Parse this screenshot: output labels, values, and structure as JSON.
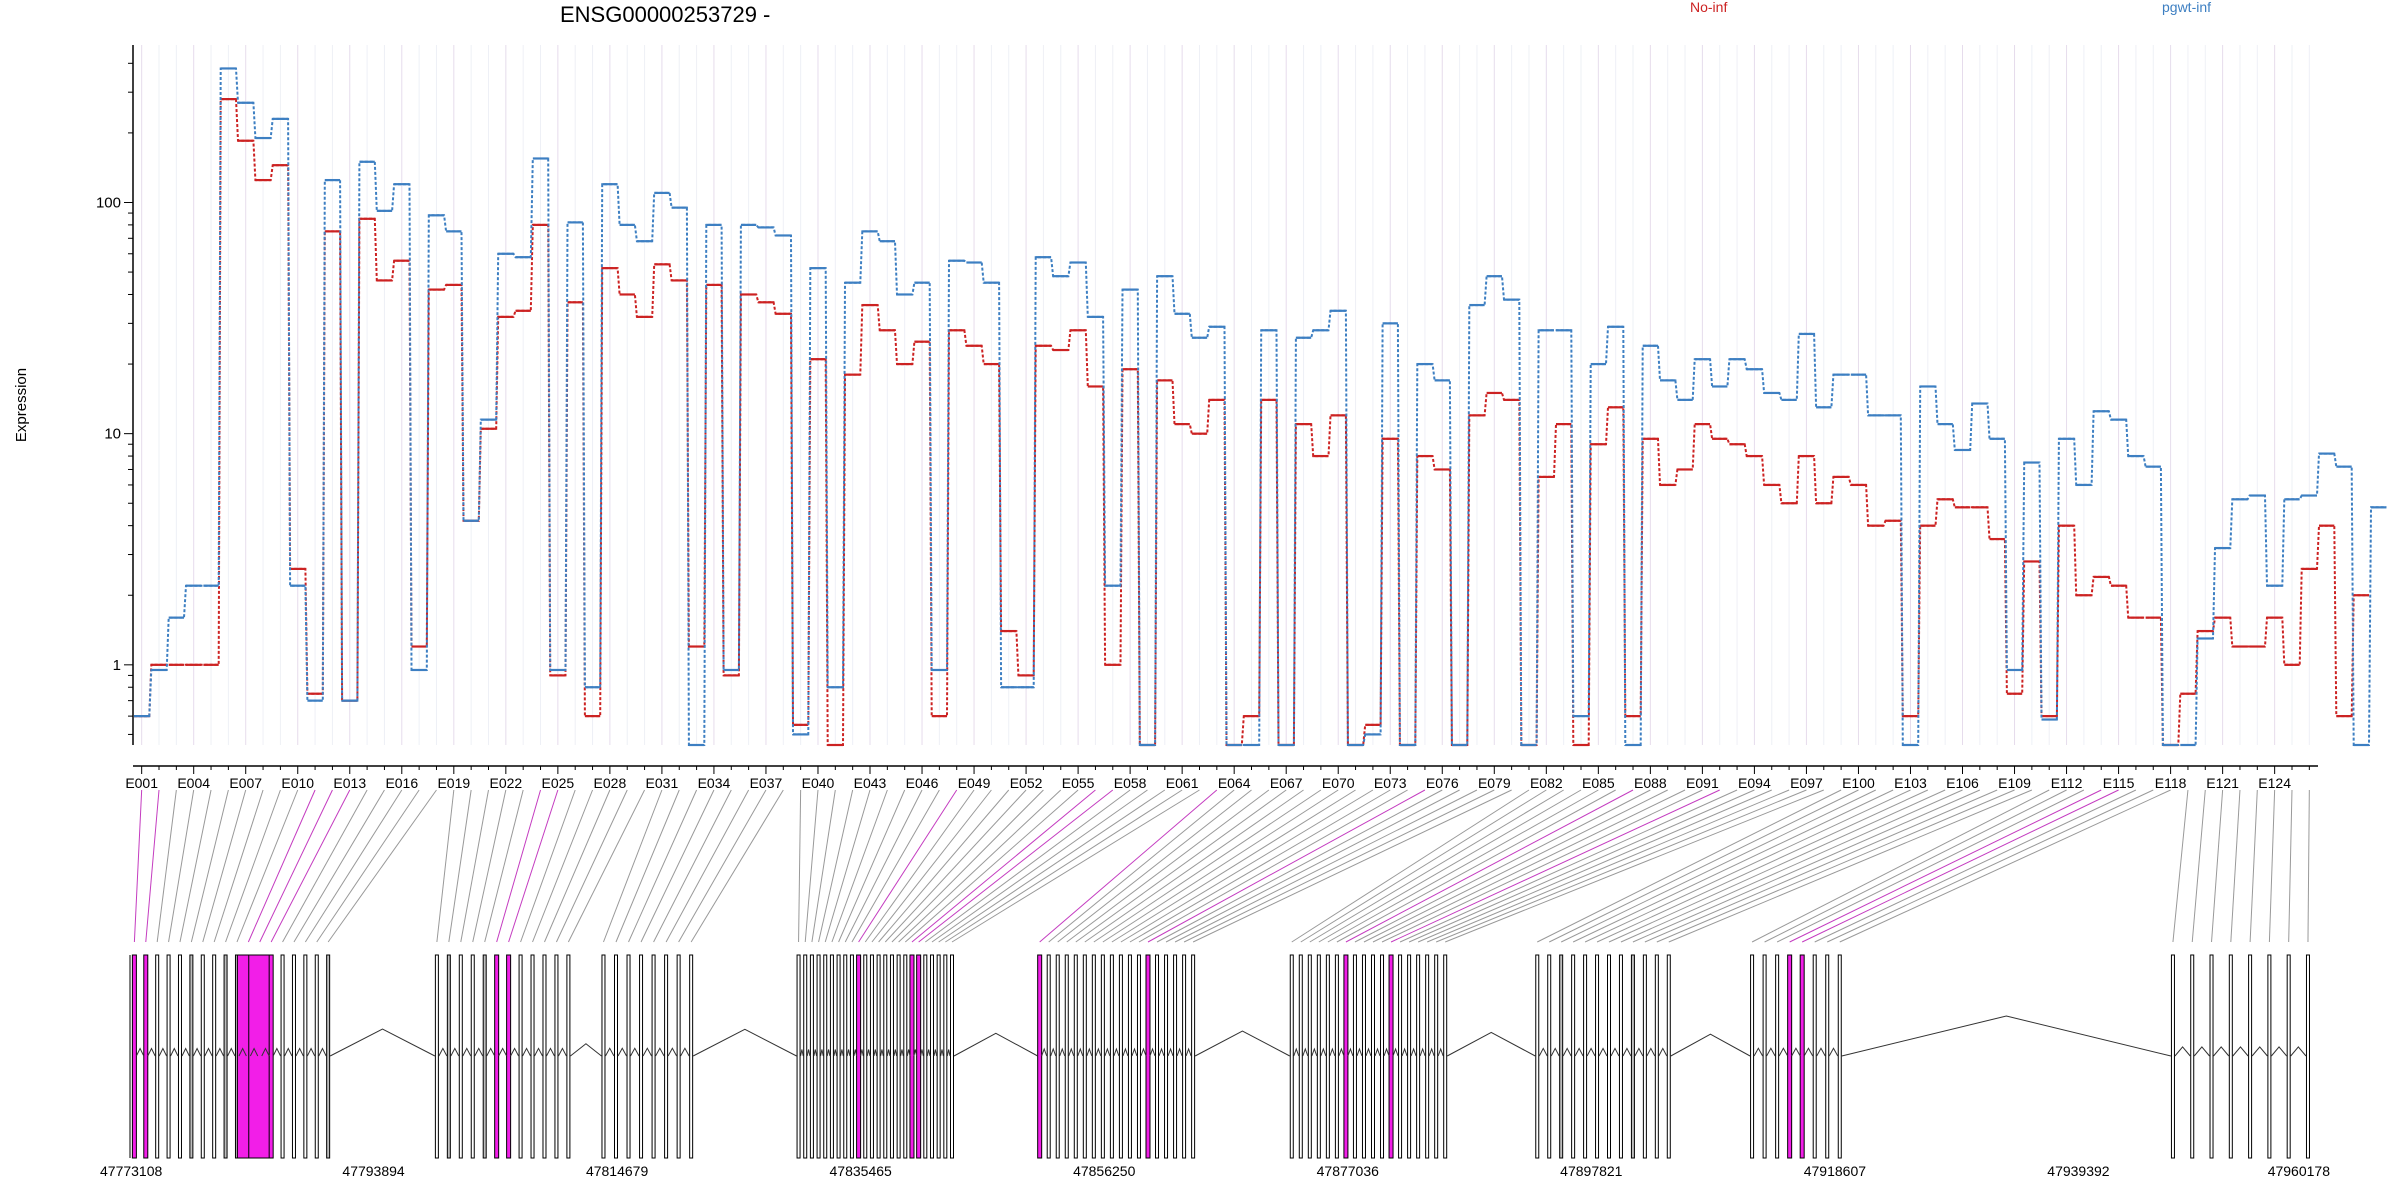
{
  "chart_data": {
    "type": "line",
    "title": "ENSG00000253729 -",
    "ylabel": "Expression",
    "yscale": "log",
    "ylim": [
      0.45,
      480
    ],
    "yticks": [
      "1",
      "10",
      "100"
    ],
    "legend_placement": "top",
    "n_exons": 126,
    "exon_labels": [
      "E001",
      "E004",
      "E007",
      "E010",
      "E013",
      "E016",
      "E019",
      "E022",
      "E025",
      "E028",
      "E031",
      "E034",
      "E037",
      "E040",
      "E043",
      "E046",
      "E049",
      "E052",
      "E055",
      "E058",
      "E061",
      "E064",
      "E067",
      "E070",
      "E073",
      "E076",
      "E079",
      "E082",
      "E085",
      "E088",
      "E091",
      "E094",
      "E097",
      "E100",
      "E103",
      "E106",
      "E109",
      "E112",
      "E115",
      "E118",
      "E121",
      "E124"
    ],
    "genomic_ticks": [
      "47773108",
      "47793894",
      "47814679",
      "47835465",
      "47856250",
      "47877036",
      "47897821",
      "47918607",
      "47939392",
      "47960178"
    ],
    "series": [
      {
        "name": "No-inf",
        "color": "#cc2222",
        "values": [
          0.6,
          1.0,
          1.0,
          1.0,
          1.0,
          280,
          185,
          125,
          145,
          2.6,
          0.75,
          75,
          0.7,
          85,
          46,
          56,
          1.2,
          42,
          44,
          4.2,
          10.5,
          32,
          34,
          80,
          0.9,
          37,
          0.6,
          52,
          40,
          32,
          54,
          46,
          1.2,
          44,
          0.9,
          40,
          37,
          33,
          0.55,
          21,
          0.45,
          18,
          36,
          28,
          20,
          25,
          0.6,
          28,
          24,
          20,
          1.4,
          0.9,
          24,
          23,
          28,
          16,
          1.0,
          19,
          0.45,
          17,
          11,
          10,
          14,
          0.45,
          0.6,
          14,
          0.45,
          11,
          8,
          12,
          0.45,
          0.55,
          9.5,
          0.45,
          8,
          7,
          0.45,
          12,
          15,
          14,
          0.45,
          6.5,
          11,
          0.45,
          9,
          13,
          0.6,
          9.5,
          6,
          7,
          11,
          9.5,
          9,
          8,
          6,
          5,
          8,
          5,
          6.5,
          6,
          4,
          4.2,
          0.6,
          4,
          5.2,
          4.8,
          4.8,
          3.5,
          0.75,
          2.8,
          0.6,
          4,
          2,
          2.4,
          2.2,
          1.6,
          1.6,
          0.45,
          0.75,
          1.4,
          1.6,
          1.2,
          1.2,
          1.6,
          1.0,
          2.6,
          4,
          0.6,
          2
        ]
      },
      {
        "name": "pgwt-inf",
        "color": "#3d7fc2",
        "values": [
          0.6,
          0.95,
          1.6,
          2.2,
          2.2,
          380,
          270,
          190,
          230,
          2.2,
          0.7,
          125,
          0.7,
          150,
          92,
          120,
          0.95,
          88,
          75,
          4.2,
          11.5,
          60,
          58,
          155,
          0.95,
          82,
          0.8,
          120,
          80,
          68,
          110,
          95,
          0.45,
          80,
          0.95,
          80,
          78,
          72,
          0.5,
          52,
          0.8,
          45,
          75,
          68,
          40,
          45,
          0.95,
          56,
          55,
          45,
          0.8,
          0.8,
          58,
          48,
          55,
          32,
          2.2,
          42,
          0.45,
          48,
          33,
          26,
          29,
          0.45,
          0.45,
          28,
          0.45,
          26,
          28,
          34,
          0.45,
          0.5,
          30,
          0.45,
          20,
          17,
          0.45,
          36,
          48,
          38,
          0.45,
          28,
          28,
          0.6,
          20,
          29,
          0.45,
          24,
          17,
          14,
          21,
          16,
          21,
          19,
          15,
          14,
          27,
          13,
          18,
          18,
          12,
          12,
          0.45,
          16,
          11,
          8.5,
          13.5,
          9.5,
          0.95,
          7.5,
          0.58,
          9.5,
          6,
          12.5,
          11.5,
          8,
          7.2,
          0.45,
          0.45,
          1.3,
          3.2,
          5.2,
          5.4,
          2.2,
          5.2,
          5.4,
          8.2,
          7.2,
          0.45,
          4.8
        ]
      }
    ]
  }
}
